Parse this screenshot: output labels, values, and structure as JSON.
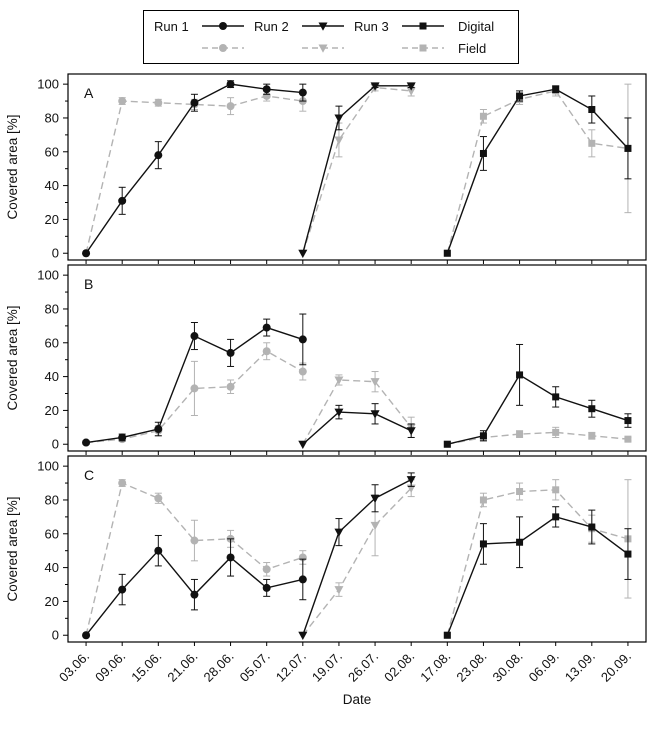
{
  "legend": {
    "runs": [
      {
        "label": "Run 1",
        "marker": "circle"
      },
      {
        "label": "Run 2",
        "marker": "triangle-down"
      },
      {
        "label": "Run 3",
        "marker": "square"
      }
    ],
    "groups": [
      {
        "label": "Digital",
        "color": "#111111",
        "dash": "solid"
      },
      {
        "label": "Field",
        "color": "#b3b3b3",
        "dash": "dashed"
      }
    ]
  },
  "axes": {
    "xlabel": "Date",
    "ylabel": "Covered area [%]",
    "yticks": [
      0,
      20,
      40,
      60,
      80,
      100
    ],
    "ylim": [
      0,
      100
    ],
    "categories": [
      "03.06.",
      "09.06.",
      "15.06.",
      "21.06.",
      "28.06.",
      "05.07.",
      "12.07.",
      "19.07.",
      "26.07.",
      "02.08.",
      "17.08.",
      "23.08.",
      "30.08.",
      "06.09.",
      "13.09.",
      "20.09."
    ]
  },
  "chart_data": [
    {
      "type": "line",
      "panel": "A",
      "ylabel": "Covered area [%]",
      "ylim": [
        0,
        100
      ],
      "series": [
        {
          "name": "Run 1 Digital",
          "run": "Run 1",
          "group": "Digital",
          "marker": "circle",
          "color": "#111111",
          "dash": "solid",
          "points": [
            {
              "x": "03.06.",
              "y": 0,
              "e": 0
            },
            {
              "x": "09.06.",
              "y": 31,
              "e": 8
            },
            {
              "x": "15.06.",
              "y": 58,
              "e": 8
            },
            {
              "x": "21.06.",
              "y": 89,
              "e": 5
            },
            {
              "x": "28.06.",
              "y": 100,
              "e": 2
            },
            {
              "x": "05.07.",
              "y": 97,
              "e": 3
            },
            {
              "x": "12.07.",
              "y": 95,
              "e": 5
            }
          ]
        },
        {
          "name": "Run 1 Field",
          "run": "Run 1",
          "group": "Field",
          "marker": "circle",
          "color": "#b3b3b3",
          "dash": "dashed",
          "points": [
            {
              "x": "03.06.",
              "y": 0,
              "e": 0
            },
            {
              "x": "09.06.",
              "y": 90,
              "e": 2
            },
            {
              "x": "15.06.",
              "y": 89,
              "e": 2
            },
            {
              "x": "21.06.",
              "y": 88,
              "e": 3
            },
            {
              "x": "28.06.",
              "y": 87,
              "e": 5
            },
            {
              "x": "05.07.",
              "y": 93,
              "e": 3
            },
            {
              "x": "12.07.",
              "y": 90,
              "e": 6
            }
          ]
        },
        {
          "name": "Run 2 Digital",
          "run": "Run 2",
          "group": "Digital",
          "marker": "triangle-down",
          "color": "#111111",
          "dash": "solid",
          "points": [
            {
              "x": "12.07.",
              "y": 0,
              "e": 0
            },
            {
              "x": "19.07.",
              "y": 80,
              "e": 7
            },
            {
              "x": "26.07.",
              "y": 99,
              "e": 1
            },
            {
              "x": "02.08.",
              "y": 99,
              "e": 1
            }
          ]
        },
        {
          "name": "Run 2 Field",
          "run": "Run 2",
          "group": "Field",
          "marker": "triangle-down",
          "color": "#b3b3b3",
          "dash": "dashed",
          "points": [
            {
              "x": "12.07.",
              "y": 0,
              "e": 0
            },
            {
              "x": "19.07.",
              "y": 67,
              "e": 10
            },
            {
              "x": "26.07.",
              "y": 98,
              "e": 2
            },
            {
              "x": "02.08.",
              "y": 96,
              "e": 3
            }
          ]
        },
        {
          "name": "Run 3 Digital",
          "run": "Run 3",
          "group": "Digital",
          "marker": "square",
          "color": "#111111",
          "dash": "solid",
          "points": [
            {
              "x": "17.08.",
              "y": 0,
              "e": 0
            },
            {
              "x": "23.08.",
              "y": 59,
              "e": 10
            },
            {
              "x": "30.08.",
              "y": 93,
              "e": 3
            },
            {
              "x": "06.09.",
              "y": 97,
              "e": 2
            },
            {
              "x": "13.09.",
              "y": 85,
              "e": 8
            },
            {
              "x": "20.09.",
              "y": 62,
              "e": 18
            }
          ]
        },
        {
          "name": "Run 3 Field",
          "run": "Run 3",
          "group": "Field",
          "marker": "square",
          "color": "#b3b3b3",
          "dash": "dashed",
          "points": [
            {
              "x": "17.08.",
              "y": 0,
              "e": 0
            },
            {
              "x": "23.08.",
              "y": 81,
              "e": 4
            },
            {
              "x": "30.08.",
              "y": 91,
              "e": 3
            },
            {
              "x": "06.09.",
              "y": 96,
              "e": 3
            },
            {
              "x": "13.09.",
              "y": 65,
              "e": 8
            },
            {
              "x": "20.09.",
              "y": 62,
              "e": 38
            }
          ]
        }
      ]
    },
    {
      "type": "line",
      "panel": "B",
      "ylabel": "Covered area [%]",
      "ylim": [
        0,
        100
      ],
      "series": [
        {
          "name": "Run 1 Digital",
          "run": "Run 1",
          "group": "Digital",
          "marker": "circle",
          "color": "#111111",
          "dash": "solid",
          "points": [
            {
              "x": "03.06.",
              "y": 1,
              "e": 1
            },
            {
              "x": "09.06.",
              "y": 4,
              "e": 2
            },
            {
              "x": "15.06.",
              "y": 9,
              "e": 4
            },
            {
              "x": "21.06.",
              "y": 64,
              "e": 8
            },
            {
              "x": "28.06.",
              "y": 54,
              "e": 8
            },
            {
              "x": "05.07.",
              "y": 69,
              "e": 5
            },
            {
              "x": "12.07.",
              "y": 62,
              "e": 15
            }
          ]
        },
        {
          "name": "Run 1 Field",
          "run": "Run 1",
          "group": "Field",
          "marker": "circle",
          "color": "#b3b3b3",
          "dash": "dashed",
          "points": [
            {
              "x": "03.06.",
              "y": 1,
              "e": 1
            },
            {
              "x": "09.06.",
              "y": 3,
              "e": 1
            },
            {
              "x": "15.06.",
              "y": 8,
              "e": 3
            },
            {
              "x": "21.06.",
              "y": 33,
              "e": 16
            },
            {
              "x": "28.06.",
              "y": 34,
              "e": 4
            },
            {
              "x": "05.07.",
              "y": 55,
              "e": 5
            },
            {
              "x": "12.07.",
              "y": 43,
              "e": 5
            }
          ]
        },
        {
          "name": "Run 2 Digital",
          "run": "Run 2",
          "group": "Digital",
          "marker": "triangle-down",
          "color": "#111111",
          "dash": "solid",
          "points": [
            {
              "x": "12.07.",
              "y": 0,
              "e": 0
            },
            {
              "x": "19.07.",
              "y": 19,
              "e": 4
            },
            {
              "x": "26.07.",
              "y": 18,
              "e": 6
            },
            {
              "x": "02.08.",
              "y": 8,
              "e": 4
            }
          ]
        },
        {
          "name": "Run 2 Field",
          "run": "Run 2",
          "group": "Field",
          "marker": "triangle-down",
          "color": "#b3b3b3",
          "dash": "dashed",
          "points": [
            {
              "x": "12.07.",
              "y": 0,
              "e": 0
            },
            {
              "x": "19.07.",
              "y": 38,
              "e": 3
            },
            {
              "x": "26.07.",
              "y": 37,
              "e": 6
            },
            {
              "x": "02.08.",
              "y": 10,
              "e": 6
            }
          ]
        },
        {
          "name": "Run 3 Digital",
          "run": "Run 3",
          "group": "Digital",
          "marker": "square",
          "color": "#111111",
          "dash": "solid",
          "points": [
            {
              "x": "17.08.",
              "y": 0,
              "e": 0
            },
            {
              "x": "23.08.",
              "y": 5,
              "e": 3
            },
            {
              "x": "30.08.",
              "y": 41,
              "e": 18
            },
            {
              "x": "06.09.",
              "y": 28,
              "e": 6
            },
            {
              "x": "13.09.",
              "y": 21,
              "e": 5
            },
            {
              "x": "20.09.",
              "y": 14,
              "e": 4
            }
          ]
        },
        {
          "name": "Run 3 Field",
          "run": "Run 3",
          "group": "Field",
          "marker": "square",
          "color": "#b3b3b3",
          "dash": "dashed",
          "points": [
            {
              "x": "17.08.",
              "y": 0,
              "e": 0
            },
            {
              "x": "23.08.",
              "y": 4,
              "e": 2
            },
            {
              "x": "30.08.",
              "y": 6,
              "e": 2
            },
            {
              "x": "06.09.",
              "y": 7,
              "e": 3
            },
            {
              "x": "13.09.",
              "y": 5,
              "e": 2
            },
            {
              "x": "20.09.",
              "y": 3,
              "e": 1
            }
          ]
        }
      ]
    },
    {
      "type": "line",
      "panel": "C",
      "ylabel": "Covered area [%]",
      "ylim": [
        0,
        100
      ],
      "series": [
        {
          "name": "Run 1 Digital",
          "run": "Run 1",
          "group": "Digital",
          "marker": "circle",
          "color": "#111111",
          "dash": "solid",
          "points": [
            {
              "x": "03.06.",
              "y": 0,
              "e": 0
            },
            {
              "x": "09.06.",
              "y": 27,
              "e": 9
            },
            {
              "x": "15.06.",
              "y": 50,
              "e": 9
            },
            {
              "x": "21.06.",
              "y": 24,
              "e": 9
            },
            {
              "x": "28.06.",
              "y": 46,
              "e": 11
            },
            {
              "x": "05.07.",
              "y": 28,
              "e": 5
            },
            {
              "x": "12.07.",
              "y": 33,
              "e": 12
            }
          ]
        },
        {
          "name": "Run 1 Field",
          "run": "Run 1",
          "group": "Field",
          "marker": "circle",
          "color": "#b3b3b3",
          "dash": "dashed",
          "points": [
            {
              "x": "03.06.",
              "y": 0,
              "e": 0
            },
            {
              "x": "09.06.",
              "y": 90,
              "e": 2
            },
            {
              "x": "15.06.",
              "y": 81,
              "e": 3
            },
            {
              "x": "21.06.",
              "y": 56,
              "e": 12
            },
            {
              "x": "28.06.",
              "y": 57,
              "e": 5
            },
            {
              "x": "05.07.",
              "y": 39,
              "e": 4
            },
            {
              "x": "12.07.",
              "y": 46,
              "e": 4
            }
          ]
        },
        {
          "name": "Run 2 Digital",
          "run": "Run 2",
          "group": "Digital",
          "marker": "triangle-down",
          "color": "#111111",
          "dash": "solid",
          "points": [
            {
              "x": "12.07.",
              "y": 0,
              "e": 0
            },
            {
              "x": "19.07.",
              "y": 61,
              "e": 8
            },
            {
              "x": "26.07.",
              "y": 81,
              "e": 8
            },
            {
              "x": "02.08.",
              "y": 92,
              "e": 4
            }
          ]
        },
        {
          "name": "Run 2 Field",
          "run": "Run 2",
          "group": "Field",
          "marker": "triangle-down",
          "color": "#b3b3b3",
          "dash": "dashed",
          "points": [
            {
              "x": "12.07.",
              "y": 0,
              "e": 0
            },
            {
              "x": "19.07.",
              "y": 27,
              "e": 4
            },
            {
              "x": "26.07.",
              "y": 65,
              "e": 18
            },
            {
              "x": "02.08.",
              "y": 87,
              "e": 5
            }
          ]
        },
        {
          "name": "Run 3 Digital",
          "run": "Run 3",
          "group": "Digital",
          "marker": "square",
          "color": "#111111",
          "dash": "solid",
          "points": [
            {
              "x": "17.08.",
              "y": 0,
              "e": 0
            },
            {
              "x": "23.08.",
              "y": 54,
              "e": 12
            },
            {
              "x": "30.08.",
              "y": 55,
              "e": 15
            },
            {
              "x": "06.09.",
              "y": 70,
              "e": 6
            },
            {
              "x": "13.09.",
              "y": 64,
              "e": 10
            },
            {
              "x": "20.09.",
              "y": 48,
              "e": 15
            }
          ]
        },
        {
          "name": "Run 3 Field",
          "run": "Run 3",
          "group": "Field",
          "marker": "square",
          "color": "#b3b3b3",
          "dash": "dashed",
          "points": [
            {
              "x": "17.08.",
              "y": 0,
              "e": 0
            },
            {
              "x": "23.08.",
              "y": 80,
              "e": 4
            },
            {
              "x": "30.08.",
              "y": 85,
              "e": 5
            },
            {
              "x": "06.09.",
              "y": 86,
              "e": 6
            },
            {
              "x": "13.09.",
              "y": 63,
              "e": 8
            },
            {
              "x": "20.09.",
              "y": 57,
              "e": 35
            }
          ]
        }
      ]
    }
  ]
}
